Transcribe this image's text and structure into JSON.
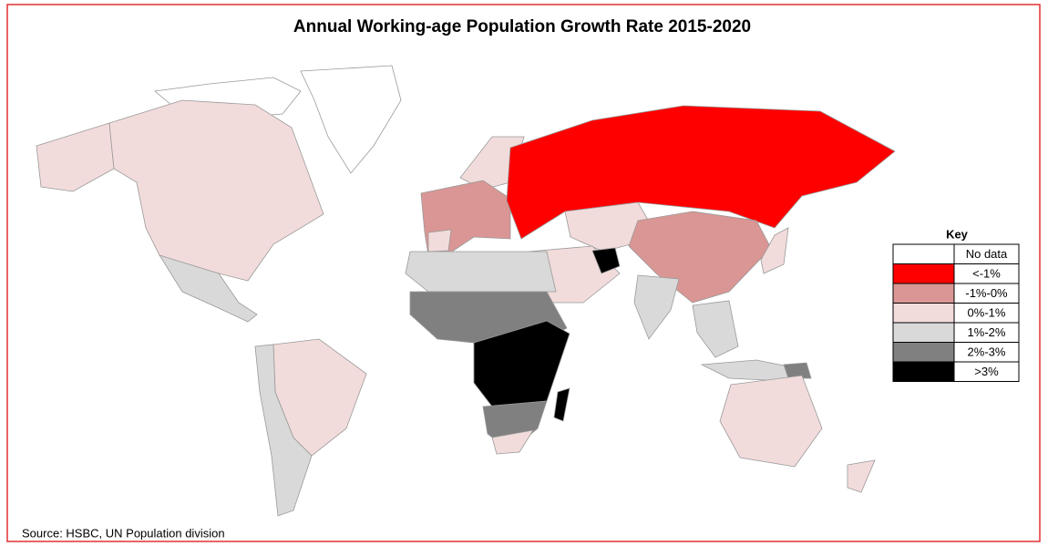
{
  "title": "Annual Working-age Population Growth Rate 2015-2020",
  "legend": {
    "title": "Key",
    "items": [
      {
        "label": "No data",
        "color": "#ffffff"
      },
      {
        "label": "<-1%",
        "color": "#ff0000"
      },
      {
        "label": "-1%-0%",
        "color": "#da9694"
      },
      {
        "label": "0%-1%",
        "color": "#f2dcdb"
      },
      {
        "label": "1%-2%",
        "color": "#d9d9d9"
      },
      {
        "label": "2%-3%",
        "color": "#808080"
      },
      {
        "label": ">3%",
        "color": "#000000"
      }
    ]
  },
  "source": "Source: HSBC, UN Population division"
}
